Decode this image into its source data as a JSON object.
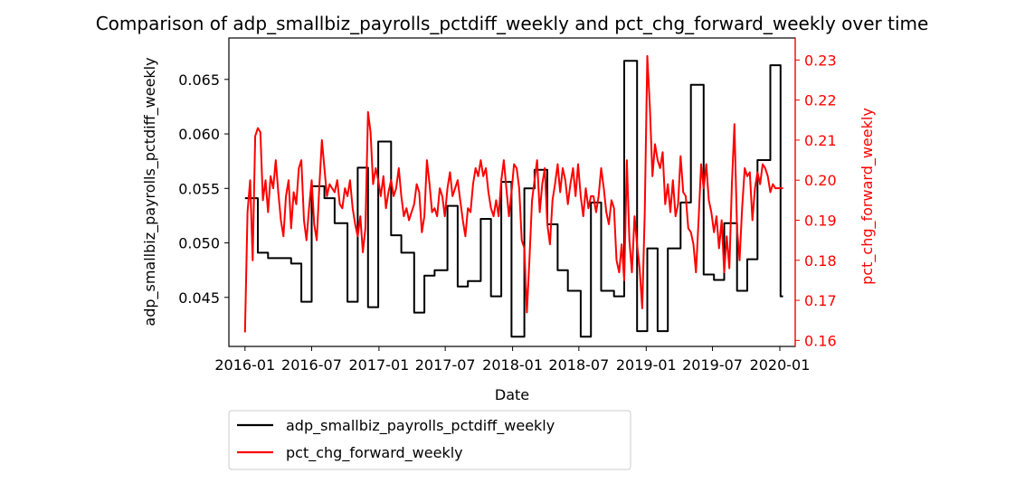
{
  "chart_data": {
    "type": "line",
    "title": "Comparison of adp_smallbiz_payrolls_pctdiff_weekly and pct_chg_forward_weekly over time",
    "xlabel": "Date",
    "ylabel_left": "adp_smallbiz_payrolls_pctdiff_weekly",
    "ylabel_right": "pct_chg_forward_weekly",
    "x_ticks": [
      "2016-01",
      "2016-07",
      "2017-01",
      "2017-07",
      "2018-01",
      "2018-07",
      "2019-01",
      "2019-07",
      "2020-01"
    ],
    "y_left_ticks": [
      "0.045",
      "0.050",
      "0.055",
      "0.060",
      "0.065"
    ],
    "y_right_ticks": [
      "0.16",
      "0.17",
      "0.18",
      "0.19",
      "0.20",
      "0.21",
      "0.22",
      "0.23"
    ],
    "xlim": [
      "2015-11-18",
      "2020-02-12"
    ],
    "ylim_left": [
      0.0405,
      0.0688
    ],
    "ylim_right": [
      0.1585,
      0.2355
    ],
    "grid": false,
    "legend_position": "below-left",
    "series": [
      {
        "name": "adp_smallbiz_payrolls_pctdiff_weekly",
        "axis": "left",
        "color": "#000000",
        "step": true,
        "points": [
          [
            "2016-01-01",
            0.0541
          ],
          [
            "2016-02-05",
            0.0491
          ],
          [
            "2016-03-04",
            0.0486
          ],
          [
            "2016-05-06",
            0.0481
          ],
          [
            "2016-06-03",
            0.0446
          ],
          [
            "2016-07-01",
            0.0552
          ],
          [
            "2016-08-05",
            0.0541
          ],
          [
            "2016-09-02",
            0.0518
          ],
          [
            "2016-10-07",
            0.0446
          ],
          [
            "2016-11-04",
            0.0569
          ],
          [
            "2016-12-02",
            0.0441
          ],
          [
            "2016-12-30",
            0.0593
          ],
          [
            "2017-02-03",
            0.0507
          ],
          [
            "2017-03-03",
            0.0491
          ],
          [
            "2017-04-07",
            0.0436
          ],
          [
            "2017-05-05",
            0.047
          ],
          [
            "2017-06-02",
            0.0475
          ],
          [
            "2017-07-07",
            0.0534
          ],
          [
            "2017-08-04",
            0.046
          ],
          [
            "2017-09-01",
            0.0465
          ],
          [
            "2017-10-06",
            0.0522
          ],
          [
            "2017-11-03",
            0.0451
          ],
          [
            "2017-12-01",
            0.0556
          ],
          [
            "2017-12-29",
            0.0414
          ],
          [
            "2018-02-02",
            0.055
          ],
          [
            "2018-03-02",
            0.0567
          ],
          [
            "2018-04-06",
            0.0517
          ],
          [
            "2018-05-04",
            0.0475
          ],
          [
            "2018-06-01",
            0.0456
          ],
          [
            "2018-07-06",
            0.0414
          ],
          [
            "2018-08-03",
            0.0537
          ],
          [
            "2018-08-31",
            0.0456
          ],
          [
            "2018-10-05",
            0.0451
          ],
          [
            "2018-11-02",
            0.0667
          ],
          [
            "2018-12-07",
            0.0419
          ],
          [
            "2019-01-04",
            0.0495
          ],
          [
            "2019-02-01",
            0.0419
          ],
          [
            "2019-03-01",
            0.0495
          ],
          [
            "2019-04-05",
            0.0537
          ],
          [
            "2019-05-03",
            0.0645
          ],
          [
            "2019-06-07",
            0.0471
          ],
          [
            "2019-07-05",
            0.0466
          ],
          [
            "2019-08-02",
            0.0518
          ],
          [
            "2019-09-06",
            0.0456
          ],
          [
            "2019-10-04",
            0.0485
          ],
          [
            "2019-11-01",
            0.0576
          ],
          [
            "2019-12-06",
            0.0663
          ],
          [
            "2020-01-03",
            0.0451
          ],
          [
            "2020-01-10",
            0.0451
          ]
        ]
      },
      {
        "name": "pct_chg_forward_weekly",
        "axis": "right",
        "color": "#ff0000",
        "step": false,
        "points": [
          [
            "2016-01-01",
            0.162
          ],
          [
            "2016-01-08",
            0.192
          ],
          [
            "2016-01-15",
            0.2
          ],
          [
            "2016-01-22",
            0.18
          ],
          [
            "2016-01-29",
            0.211
          ],
          [
            "2016-02-05",
            0.213
          ],
          [
            "2016-02-12",
            0.212
          ],
          [
            "2016-02-19",
            0.195
          ],
          [
            "2016-02-26",
            0.2
          ],
          [
            "2016-03-04",
            0.192
          ],
          [
            "2016-03-11",
            0.201
          ],
          [
            "2016-03-18",
            0.198
          ],
          [
            "2016-03-25",
            0.205
          ],
          [
            "2016-04-01",
            0.197
          ],
          [
            "2016-04-08",
            0.19
          ],
          [
            "2016-04-15",
            0.186
          ],
          [
            "2016-04-22",
            0.196
          ],
          [
            "2016-04-29",
            0.2
          ],
          [
            "2016-05-06",
            0.188
          ],
          [
            "2016-05-13",
            0.197
          ],
          [
            "2016-05-20",
            0.194
          ],
          [
            "2016-05-27",
            0.203
          ],
          [
            "2016-06-03",
            0.205
          ],
          [
            "2016-06-10",
            0.19
          ],
          [
            "2016-06-17",
            0.185
          ],
          [
            "2016-06-24",
            0.193
          ],
          [
            "2016-07-01",
            0.2
          ],
          [
            "2016-07-08",
            0.189
          ],
          [
            "2016-07-15",
            0.185
          ],
          [
            "2016-07-22",
            0.198
          ],
          [
            "2016-07-29",
            0.21
          ],
          [
            "2016-08-05",
            0.203
          ],
          [
            "2016-08-12",
            0.196
          ],
          [
            "2016-08-19",
            0.199
          ],
          [
            "2016-08-26",
            0.198
          ],
          [
            "2016-09-02",
            0.197
          ],
          [
            "2016-09-09",
            0.2
          ],
          [
            "2016-09-16",
            0.194
          ],
          [
            "2016-09-23",
            0.193
          ],
          [
            "2016-09-30",
            0.198
          ],
          [
            "2016-10-07",
            0.196
          ],
          [
            "2016-10-14",
            0.2
          ],
          [
            "2016-10-21",
            0.193
          ],
          [
            "2016-10-28",
            0.189
          ],
          [
            "2016-11-04",
            0.186
          ],
          [
            "2016-11-11",
            0.191
          ],
          [
            "2016-11-18",
            0.182
          ],
          [
            "2016-11-25",
            0.188
          ],
          [
            "2016-12-02",
            0.217
          ],
          [
            "2016-12-09",
            0.212
          ],
          [
            "2016-12-16",
            0.199
          ],
          [
            "2016-12-23",
            0.203
          ],
          [
            "2016-12-30",
            0.2
          ],
          [
            "2017-01-06",
            0.196
          ],
          [
            "2017-01-13",
            0.201
          ],
          [
            "2017-01-20",
            0.193
          ],
          [
            "2017-01-27",
            0.197
          ],
          [
            "2017-02-03",
            0.2
          ],
          [
            "2017-02-10",
            0.196
          ],
          [
            "2017-02-17",
            0.198
          ],
          [
            "2017-02-24",
            0.203
          ],
          [
            "2017-03-03",
            0.196
          ],
          [
            "2017-03-10",
            0.191
          ],
          [
            "2017-03-17",
            0.193
          ],
          [
            "2017-03-24",
            0.19
          ],
          [
            "2017-03-31",
            0.192
          ],
          [
            "2017-04-07",
            0.194
          ],
          [
            "2017-04-14",
            0.199
          ],
          [
            "2017-04-21",
            0.197
          ],
          [
            "2017-04-28",
            0.187
          ],
          [
            "2017-05-05",
            0.191
          ],
          [
            "2017-05-12",
            0.205
          ],
          [
            "2017-05-19",
            0.199
          ],
          [
            "2017-05-26",
            0.192
          ],
          [
            "2017-06-02",
            0.193
          ],
          [
            "2017-06-09",
            0.191
          ],
          [
            "2017-06-16",
            0.198
          ],
          [
            "2017-06-23",
            0.196
          ],
          [
            "2017-06-30",
            0.191
          ],
          [
            "2017-07-07",
            0.198
          ],
          [
            "2017-07-14",
            0.202
          ],
          [
            "2017-07-21",
            0.196
          ],
          [
            "2017-07-28",
            0.198
          ],
          [
            "2017-08-04",
            0.2
          ],
          [
            "2017-08-11",
            0.195
          ],
          [
            "2017-08-18",
            0.19
          ],
          [
            "2017-08-25",
            0.186
          ],
          [
            "2017-09-01",
            0.193
          ],
          [
            "2017-09-08",
            0.192
          ],
          [
            "2017-09-15",
            0.199
          ],
          [
            "2017-09-22",
            0.203
          ],
          [
            "2017-09-29",
            0.201
          ],
          [
            "2017-10-06",
            0.205
          ],
          [
            "2017-10-13",
            0.201
          ],
          [
            "2017-10-20",
            0.203
          ],
          [
            "2017-10-27",
            0.197
          ],
          [
            "2017-11-03",
            0.193
          ],
          [
            "2017-11-10",
            0.191
          ],
          [
            "2017-11-17",
            0.195
          ],
          [
            "2017-11-24",
            0.191
          ],
          [
            "2017-12-01",
            0.2
          ],
          [
            "2017-12-08",
            0.205
          ],
          [
            "2017-12-15",
            0.198
          ],
          [
            "2017-12-22",
            0.191
          ],
          [
            "2017-12-29",
            0.197
          ],
          [
            "2018-01-05",
            0.204
          ],
          [
            "2018-01-12",
            0.203
          ],
          [
            "2018-01-19",
            0.198
          ],
          [
            "2018-01-26",
            0.185
          ],
          [
            "2018-02-02",
            0.183
          ],
          [
            "2018-02-09",
            0.167
          ],
          [
            "2018-02-16",
            0.18
          ],
          [
            "2018-02-23",
            0.195
          ],
          [
            "2018-03-02",
            0.2
          ],
          [
            "2018-03-09",
            0.205
          ],
          [
            "2018-03-16",
            0.192
          ],
          [
            "2018-03-23",
            0.199
          ],
          [
            "2018-03-30",
            0.203
          ],
          [
            "2018-04-06",
            0.189
          ],
          [
            "2018-04-13",
            0.184
          ],
          [
            "2018-04-20",
            0.195
          ],
          [
            "2018-04-27",
            0.199
          ],
          [
            "2018-05-04",
            0.204
          ],
          [
            "2018-05-11",
            0.197
          ],
          [
            "2018-05-18",
            0.203
          ],
          [
            "2018-05-25",
            0.2
          ],
          [
            "2018-06-01",
            0.194
          ],
          [
            "2018-06-08",
            0.199
          ],
          [
            "2018-06-15",
            0.203
          ],
          [
            "2018-06-22",
            0.196
          ],
          [
            "2018-06-29",
            0.204
          ],
          [
            "2018-07-06",
            0.196
          ],
          [
            "2018-07-13",
            0.191
          ],
          [
            "2018-07-20",
            0.198
          ],
          [
            "2018-07-27",
            0.193
          ],
          [
            "2018-08-03",
            0.196
          ],
          [
            "2018-08-10",
            0.196
          ],
          [
            "2018-08-17",
            0.192
          ],
          [
            "2018-08-24",
            0.196
          ],
          [
            "2018-08-31",
            0.203
          ],
          [
            "2018-09-07",
            0.198
          ],
          [
            "2018-09-14",
            0.192
          ],
          [
            "2018-09-21",
            0.189
          ],
          [
            "2018-09-28",
            0.195
          ],
          [
            "2018-10-05",
            0.193
          ],
          [
            "2018-10-12",
            0.18
          ],
          [
            "2018-10-19",
            0.177
          ],
          [
            "2018-10-26",
            0.184
          ],
          [
            "2018-11-02",
            0.175
          ],
          [
            "2018-11-09",
            0.205
          ],
          [
            "2018-11-16",
            0.185
          ],
          [
            "2018-11-23",
            0.177
          ],
          [
            "2018-11-30",
            0.191
          ],
          [
            "2018-12-07",
            0.184
          ],
          [
            "2018-12-14",
            0.178
          ],
          [
            "2018-12-21",
            0.168
          ],
          [
            "2018-12-28",
            0.192
          ],
          [
            "2019-01-04",
            0.231
          ],
          [
            "2019-01-11",
            0.218
          ],
          [
            "2019-01-18",
            0.201
          ],
          [
            "2019-01-25",
            0.209
          ],
          [
            "2019-02-01",
            0.205
          ],
          [
            "2019-02-08",
            0.203
          ],
          [
            "2019-02-15",
            0.207
          ],
          [
            "2019-02-22",
            0.194
          ],
          [
            "2019-03-01",
            0.199
          ],
          [
            "2019-03-08",
            0.192
          ],
          [
            "2019-03-15",
            0.2
          ],
          [
            "2019-03-22",
            0.191
          ],
          [
            "2019-03-29",
            0.194
          ],
          [
            "2019-04-05",
            0.206
          ],
          [
            "2019-04-12",
            0.197
          ],
          [
            "2019-04-19",
            0.196
          ],
          [
            "2019-04-26",
            0.188
          ],
          [
            "2019-05-03",
            0.187
          ],
          [
            "2019-05-10",
            0.184
          ],
          [
            "2019-05-17",
            0.177
          ],
          [
            "2019-05-24",
            0.19
          ],
          [
            "2019-05-31",
            0.204
          ],
          [
            "2019-06-07",
            0.198
          ],
          [
            "2019-06-14",
            0.204
          ],
          [
            "2019-06-21",
            0.195
          ],
          [
            "2019-06-28",
            0.192
          ],
          [
            "2019-07-05",
            0.187
          ],
          [
            "2019-07-12",
            0.191
          ],
          [
            "2019-07-19",
            0.183
          ],
          [
            "2019-07-26",
            0.19
          ],
          [
            "2019-08-02",
            0.177
          ],
          [
            "2019-08-09",
            0.186
          ],
          [
            "2019-08-16",
            0.178
          ],
          [
            "2019-08-23",
            0.199
          ],
          [
            "2019-08-30",
            0.214
          ],
          [
            "2019-09-06",
            0.188
          ],
          [
            "2019-09-13",
            0.18
          ],
          [
            "2019-09-20",
            0.193
          ],
          [
            "2019-09-27",
            0.203
          ],
          [
            "2019-10-04",
            0.201
          ],
          [
            "2019-10-11",
            0.202
          ],
          [
            "2019-10-18",
            0.19
          ],
          [
            "2019-10-25",
            0.198
          ],
          [
            "2019-11-01",
            0.202
          ],
          [
            "2019-11-08",
            0.199
          ],
          [
            "2019-11-15",
            0.204
          ],
          [
            "2019-11-22",
            0.203
          ],
          [
            "2019-11-29",
            0.201
          ],
          [
            "2019-12-06",
            0.197
          ],
          [
            "2019-12-13",
            0.199
          ],
          [
            "2019-12-20",
            0.198
          ],
          [
            "2020-01-10",
            0.198
          ]
        ]
      }
    ]
  }
}
